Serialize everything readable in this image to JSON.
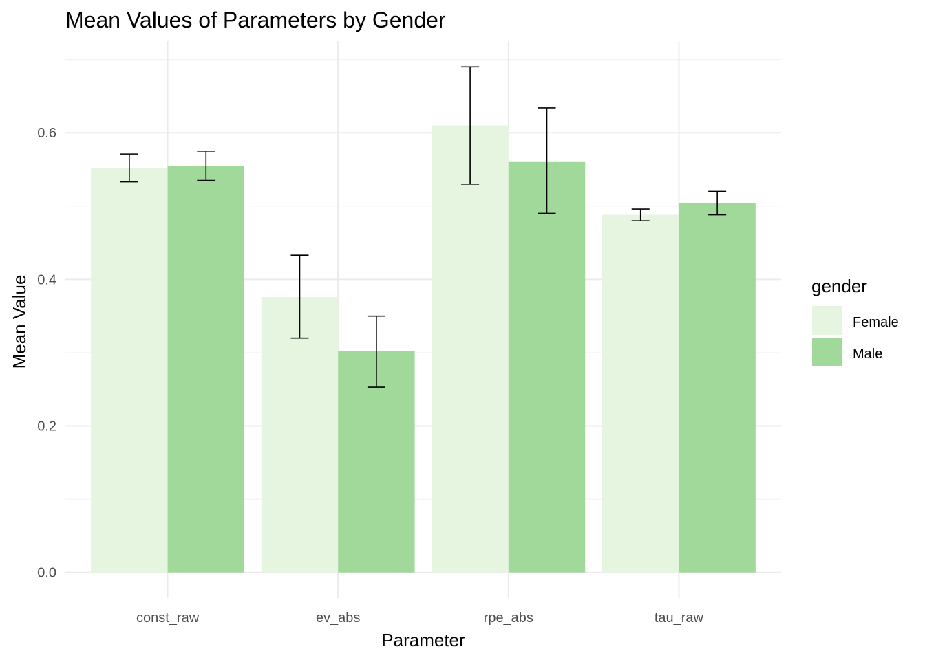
{
  "chart_data": {
    "type": "bar",
    "title": "Mean Values of Parameters by Gender",
    "xlabel": "Parameter",
    "ylabel": "Mean Value",
    "categories": [
      "const_raw",
      "ev_abs",
      "rpe_abs",
      "tau_raw"
    ],
    "series": [
      {
        "name": "Female",
        "color": "#e5f5e0",
        "values": [
          0.552,
          0.376,
          0.61,
          0.488
        ],
        "error_low": [
          0.533,
          0.32,
          0.53,
          0.48
        ],
        "error_high": [
          0.571,
          0.433,
          0.69,
          0.496
        ]
      },
      {
        "name": "Male",
        "color": "#a1d99b",
        "values": [
          0.555,
          0.302,
          0.561,
          0.504
        ],
        "error_low": [
          0.535,
          0.253,
          0.49,
          0.488
        ],
        "error_high": [
          0.575,
          0.35,
          0.634,
          0.52
        ]
      }
    ],
    "ylim": [
      -0.035,
      0.725
    ],
    "yticks": [
      0.0,
      0.2,
      0.4,
      0.6
    ],
    "ytick_labels": [
      "0.0",
      "0.2",
      "0.4",
      "0.6"
    ],
    "grid": true,
    "legend": {
      "title": "gender",
      "placement": "right"
    }
  }
}
